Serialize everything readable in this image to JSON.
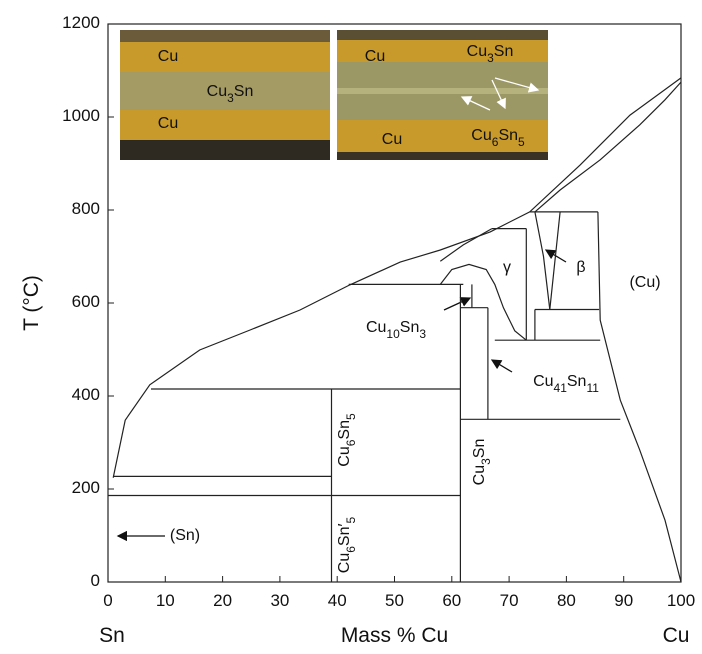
{
  "chart_data": {
    "type": "phase-diagram",
    "xlabel": "Mass % Cu",
    "x_left_label": "Sn",
    "x_right_label": "Cu",
    "ylabel": "T (°C)",
    "xlim": [
      0,
      100
    ],
    "ylim": [
      0,
      1200
    ],
    "xticks": [
      0,
      10,
      20,
      30,
      40,
      50,
      60,
      70,
      80,
      90,
      100
    ],
    "yticks": [
      0,
      200,
      400,
      600,
      800,
      1000,
      1200
    ],
    "line_color": "#222222",
    "boundaries": [
      {
        "x": [
          0.9,
          3,
          7.3,
          16,
          24.8,
          33.5,
          42.2,
          51,
          58,
          66.7,
          73.6,
          82.4,
          91.1,
          100
        ],
        "y": [
          224,
          348,
          424,
          499,
          542,
          585,
          639,
          688,
          714,
          753,
          796,
          897,
          1004,
          1084
        ]
      },
      {
        "x": [
          100,
          97.2,
          92.8,
          85.9,
          78.9,
          74.5
        ],
        "y": [
          1075,
          1037,
          983,
          908,
          843,
          796
        ]
      },
      {
        "x": [
          100,
          97.2,
          92.8,
          89.4,
          85.9,
          85.5
        ],
        "y": [
          0,
          133,
          284,
          391,
          563,
          796
        ]
      },
      {
        "x": [
          73.6,
          85.5
        ],
        "y": [
          796,
          796
        ]
      },
      {
        "x": [
          67,
          73
        ],
        "y": [
          760,
          760
        ]
      },
      {
        "x": [
          42,
          62
        ],
        "y": [
          640,
          640
        ]
      },
      {
        "x": [
          74.5,
          85.7
        ],
        "y": [
          586,
          586
        ]
      },
      {
        "x": [
          67.5,
          85.9
        ],
        "y": [
          520,
          520
        ]
      },
      {
        "x": [
          7.5,
          61.5
        ],
        "y": [
          415,
          415
        ]
      },
      {
        "x": [
          61.5,
          89.4
        ],
        "y": [
          350,
          350
        ]
      },
      {
        "x": [
          0.9,
          39
        ],
        "y": [
          227,
          227
        ]
      },
      {
        "x": [
          0,
          61.5
        ],
        "y": [
          186,
          186
        ]
      },
      {
        "x": [
          39,
          39
        ],
        "y": [
          0,
          415
        ]
      },
      {
        "x": [
          61.5,
          61.5
        ],
        "y": [
          0,
          640
        ]
      },
      {
        "x": [
          66.3,
          66.3
        ],
        "y": [
          350,
          590
        ]
      },
      {
        "x": [
          61.5,
          66.3
        ],
        "y": [
          590,
          590
        ]
      },
      {
        "x": [
          63.5,
          63.5
        ],
        "y": [
          590,
          640
        ]
      },
      {
        "x": [
          58,
          60,
          63,
          66,
          67.5,
          69,
          71,
          73
        ],
        "y": [
          640,
          672,
          683,
          672,
          640,
          590,
          540,
          520
        ]
      },
      {
        "x": [
          73,
          73
        ],
        "y": [
          520,
          760
        ]
      },
      {
        "x": [
          67,
          62,
          58
        ],
        "y": [
          760,
          725,
          690
        ]
      },
      {
        "x": [
          74.5,
          76,
          77.1
        ],
        "y": [
          796,
          700,
          586
        ]
      },
      {
        "x": [
          78.9,
          77.1
        ],
        "y": [
          796,
          586
        ]
      },
      {
        "x": [
          74.5,
          74.5
        ],
        "y": [
          586,
          520
        ]
      }
    ],
    "region_labels": [
      "(Sn)",
      "(Cu)",
      "γ",
      "β",
      "Cu10Sn3",
      "Cu41Sn11",
      "Cu6Sn5",
      "Cu6Sn′5",
      "Cu3Sn"
    ],
    "inset_left_labels": [
      "Cu",
      "Cu3Sn",
      "Cu"
    ],
    "inset_right_labels": [
      "Cu",
      "Cu3Sn",
      "Cu",
      "Cu6Sn5"
    ]
  }
}
